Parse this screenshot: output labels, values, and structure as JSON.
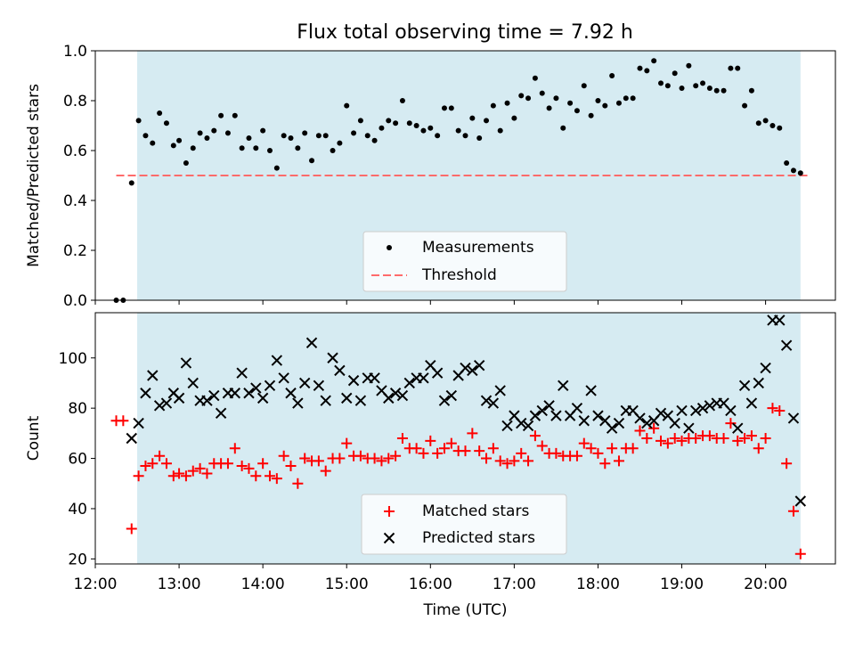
{
  "title": "Flux total observing time = 7.92 h",
  "colors": {
    "shade": "#add8e6",
    "measure": "#000000",
    "threshold": "#ff6b6b",
    "matched": "#ff0000",
    "predicted": "#000000"
  },
  "chart_data": [
    {
      "type": "scatter",
      "ylabel": "Matched/Predicted stars",
      "xlim": [
        "12:00",
        "20:50"
      ],
      "ylim": [
        0,
        1.0
      ],
      "yticks": [
        "0.0",
        "0.2",
        "0.4",
        "0.6",
        "0.8",
        "1.0"
      ],
      "observing_window": [
        "12:30",
        "20:25"
      ],
      "legend": {
        "placement": "lower-center",
        "entries": [
          "Measurements",
          "Threshold"
        ]
      },
      "threshold": {
        "name": "Threshold",
        "value": 0.5,
        "x": [
          "12:15",
          "20:30"
        ]
      },
      "measurements": {
        "name": "Measurements",
        "x": [
          "12:15",
          "12:20",
          "12:26",
          "12:31",
          "12:36",
          "12:41",
          "12:46",
          "12:51",
          "12:56",
          "13:00",
          "13:05",
          "13:10",
          "13:15",
          "13:20",
          "13:25",
          "13:30",
          "13:35",
          "13:40",
          "13:45",
          "13:50",
          "13:55",
          "14:00",
          "14:05",
          "14:10",
          "14:15",
          "14:20",
          "14:25",
          "14:30",
          "14:35",
          "14:40",
          "14:45",
          "14:50",
          "14:55",
          "15:00",
          "15:05",
          "15:10",
          "15:15",
          "15:20",
          "15:25",
          "15:30",
          "15:35",
          "15:40",
          "15:45",
          "15:50",
          "15:55",
          "16:00",
          "16:05",
          "16:10",
          "16:15",
          "16:20",
          "16:25",
          "16:30",
          "16:35",
          "16:40",
          "16:45",
          "16:50",
          "16:55",
          "17:00",
          "17:05",
          "17:10",
          "17:15",
          "17:20",
          "17:25",
          "17:30",
          "17:35",
          "17:40",
          "17:45",
          "17:50",
          "17:55",
          "18:00",
          "18:05",
          "18:10",
          "18:15",
          "18:20",
          "18:25",
          "18:30",
          "18:35",
          "18:40",
          "18:45",
          "18:50",
          "18:55",
          "19:00",
          "19:05",
          "19:10",
          "19:15",
          "19:20",
          "19:25",
          "19:30",
          "19:35",
          "19:40",
          "19:45",
          "19:50",
          "19:55",
          "20:00",
          "20:05",
          "20:10",
          "20:15",
          "20:20",
          "20:25"
        ],
        "y": [
          0.0,
          0.0,
          0.47,
          0.72,
          0.66,
          0.63,
          0.75,
          0.71,
          0.62,
          0.64,
          0.55,
          0.61,
          0.67,
          0.65,
          0.68,
          0.74,
          0.67,
          0.74,
          0.61,
          0.65,
          0.61,
          0.68,
          0.6,
          0.53,
          0.66,
          0.65,
          0.61,
          0.67,
          0.56,
          0.66,
          0.66,
          0.6,
          0.63,
          0.78,
          0.67,
          0.72,
          0.66,
          0.64,
          0.69,
          0.72,
          0.71,
          0.8,
          0.71,
          0.7,
          0.68,
          0.69,
          0.66,
          0.77,
          0.77,
          0.68,
          0.66,
          0.73,
          0.65,
          0.72,
          0.78,
          0.68,
          0.79,
          0.73,
          0.82,
          0.81,
          0.89,
          0.83,
          0.77,
          0.81,
          0.69,
          0.79,
          0.76,
          0.86,
          0.74,
          0.8,
          0.78,
          0.9,
          0.79,
          0.81,
          0.81,
          0.93,
          0.92,
          0.96,
          0.87,
          0.86,
          0.91,
          0.85,
          0.94,
          0.86,
          0.87,
          0.85,
          0.84,
          0.84,
          0.93,
          0.93,
          0.78,
          0.84,
          0.71,
          0.72,
          0.7,
          0.69,
          0.55,
          0.52,
          0.51
        ]
      }
    },
    {
      "type": "scatter",
      "xlabel": "Time (UTC)",
      "ylabel": "Count",
      "xlim": [
        "12:00",
        "20:50"
      ],
      "ylim": [
        18,
        118
      ],
      "yticks": [
        "20",
        "40",
        "60",
        "80",
        "100"
      ],
      "xticks": [
        "12:00",
        "13:00",
        "14:00",
        "15:00",
        "16:00",
        "17:00",
        "18:00",
        "19:00",
        "20:00"
      ],
      "observing_window": [
        "12:30",
        "20:25"
      ],
      "legend": {
        "placement": "lower-center",
        "entries": [
          "Matched stars",
          "Predicted stars"
        ]
      },
      "series": [
        {
          "name": "Matched stars",
          "x": [
            "12:15",
            "12:20",
            "12:26",
            "12:31",
            "12:36",
            "12:41",
            "12:46",
            "12:51",
            "12:56",
            "13:00",
            "13:05",
            "13:10",
            "13:15",
            "13:20",
            "13:25",
            "13:30",
            "13:35",
            "13:40",
            "13:45",
            "13:50",
            "13:55",
            "14:00",
            "14:05",
            "14:10",
            "14:15",
            "14:20",
            "14:25",
            "14:30",
            "14:35",
            "14:40",
            "14:45",
            "14:50",
            "14:55",
            "15:00",
            "15:05",
            "15:10",
            "15:15",
            "15:20",
            "15:25",
            "15:30",
            "15:35",
            "15:40",
            "15:45",
            "15:50",
            "15:55",
            "16:00",
            "16:05",
            "16:10",
            "16:15",
            "16:20",
            "16:25",
            "16:30",
            "16:35",
            "16:40",
            "16:45",
            "16:50",
            "16:55",
            "17:00",
            "17:05",
            "17:10",
            "17:15",
            "17:20",
            "17:25",
            "17:30",
            "17:35",
            "17:40",
            "17:45",
            "17:50",
            "17:55",
            "18:00",
            "18:05",
            "18:10",
            "18:15",
            "18:20",
            "18:25",
            "18:30",
            "18:35",
            "18:40",
            "18:45",
            "18:50",
            "18:55",
            "19:00",
            "19:05",
            "19:10",
            "19:15",
            "19:20",
            "19:25",
            "19:30",
            "19:35",
            "19:40",
            "19:45",
            "19:50",
            "19:55",
            "20:00",
            "20:05",
            "20:10",
            "20:15",
            "20:20",
            "20:25"
          ],
          "y": [
            75,
            75,
            32,
            53,
            57,
            58,
            61,
            58,
            53,
            54,
            53,
            55,
            56,
            54,
            58,
            58,
            58,
            64,
            57,
            56,
            53,
            58,
            53,
            52,
            61,
            57,
            50,
            60,
            59,
            59,
            55,
            60,
            60,
            66,
            61,
            61,
            60,
            60,
            59,
            60,
            61,
            68,
            64,
            64,
            62,
            67,
            62,
            64,
            66,
            63,
            63,
            70,
            63,
            60,
            64,
            59,
            58,
            59,
            62,
            59,
            69,
            65,
            62,
            62,
            61,
            61,
            61,
            66,
            64,
            62,
            58,
            64,
            59,
            64,
            64,
            71,
            68,
            72,
            67,
            66,
            68,
            67,
            68,
            68,
            69,
            69,
            68,
            68,
            74,
            67,
            68,
            69,
            64,
            68,
            80,
            79,
            58,
            39,
            22
          ]
        },
        {
          "name": "Predicted stars",
          "x": [
            "12:26",
            "12:31",
            "12:36",
            "12:41",
            "12:46",
            "12:51",
            "12:56",
            "13:00",
            "13:05",
            "13:10",
            "13:15",
            "13:20",
            "13:25",
            "13:30",
            "13:35",
            "13:40",
            "13:45",
            "13:50",
            "13:55",
            "14:00",
            "14:05",
            "14:10",
            "14:15",
            "14:20",
            "14:25",
            "14:30",
            "14:35",
            "14:40",
            "14:45",
            "14:50",
            "14:55",
            "15:00",
            "15:05",
            "15:10",
            "15:15",
            "15:20",
            "15:25",
            "15:30",
            "15:35",
            "15:40",
            "15:45",
            "15:50",
            "15:55",
            "16:00",
            "16:05",
            "16:10",
            "16:15",
            "16:20",
            "16:25",
            "16:30",
            "16:35",
            "16:40",
            "16:45",
            "16:50",
            "16:55",
            "17:00",
            "17:05",
            "17:10",
            "17:15",
            "17:20",
            "17:25",
            "17:30",
            "17:35",
            "17:40",
            "17:45",
            "17:50",
            "17:55",
            "18:00",
            "18:05",
            "18:10",
            "18:15",
            "18:20",
            "18:25",
            "18:30",
            "18:35",
            "18:40",
            "18:45",
            "18:50",
            "18:55",
            "19:00",
            "19:05",
            "19:10",
            "19:15",
            "19:20",
            "19:25",
            "19:30",
            "19:35",
            "19:40",
            "19:45",
            "19:50",
            "19:55",
            "20:00",
            "20:05",
            "20:10",
            "20:15",
            "20:20",
            "20:25"
          ],
          "y": [
            68,
            74,
            86,
            93,
            81,
            82,
            86,
            84,
            98,
            90,
            83,
            83,
            85,
            78,
            86,
            86,
            94,
            86,
            88,
            84,
            89,
            99,
            92,
            86,
            82,
            90,
            106,
            89,
            83,
            100,
            95,
            84,
            91,
            83,
            92,
            92,
            87,
            84,
            86,
            85,
            90,
            92,
            92,
            97,
            94,
            83,
            85,
            93,
            96,
            95,
            97,
            83,
            82,
            87,
            73,
            77,
            74,
            73,
            77,
            79,
            81,
            77,
            89,
            77,
            80,
            75,
            87,
            77,
            75,
            72,
            74,
            79,
            79,
            76,
            74,
            75,
            78,
            77,
            74,
            79,
            72,
            79,
            80,
            81,
            82,
            82,
            79,
            72,
            89,
            82,
            90,
            96,
            115,
            115,
            105,
            76,
            43
          ]
        }
      ]
    }
  ]
}
